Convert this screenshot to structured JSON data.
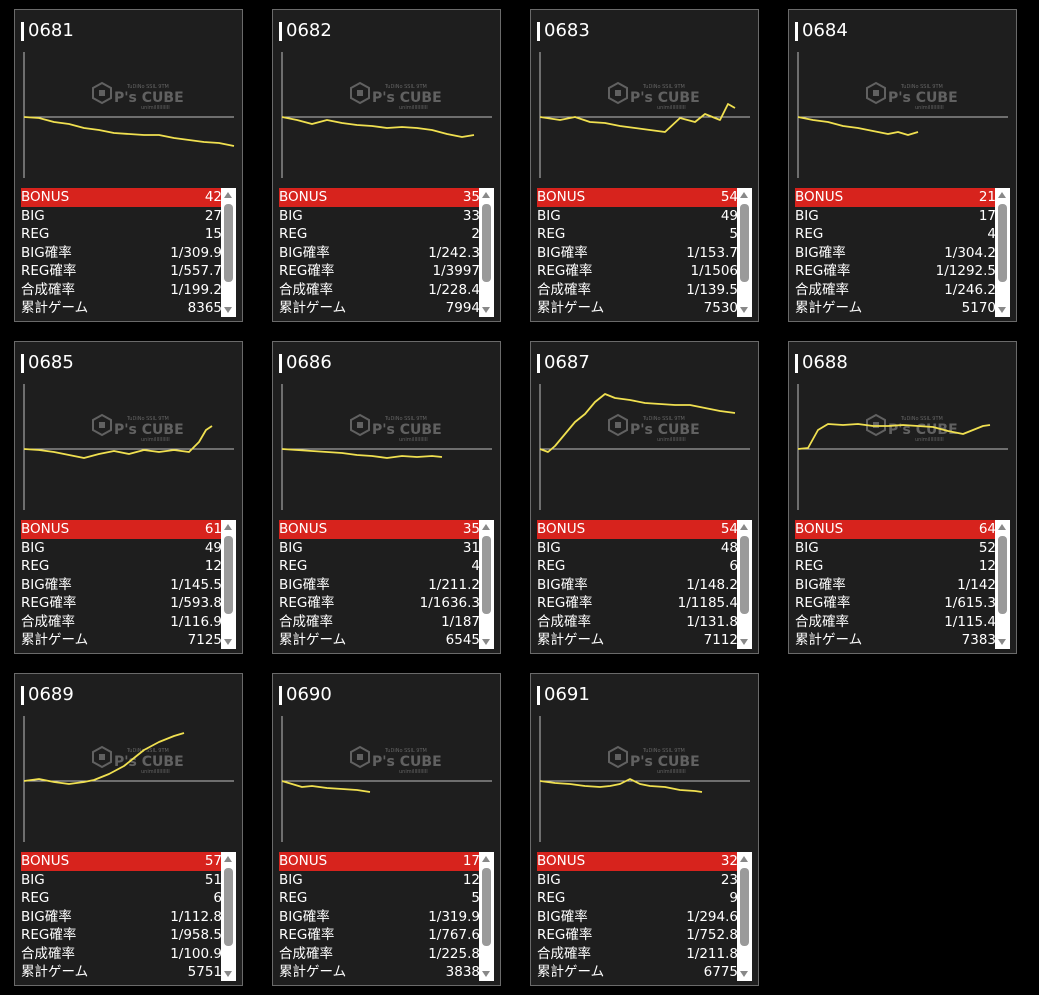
{
  "labels": {
    "bonus": "BONUS",
    "big": "BIG",
    "reg": "REG",
    "big_rate": "BIG確率",
    "reg_rate": "REG確率",
    "combined_rate": "合成確率",
    "total_games": "累計ゲーム"
  },
  "watermark": {
    "brand": "P's CUBE",
    "top": "TuDiNo SSIL 9TM",
    "bottom": "unimiIIIIIIIIII"
  },
  "colors": {
    "bonus_row": "#d7231d",
    "line": "#f0e050",
    "baseline": "#bfbfbf"
  },
  "machines": [
    {
      "id": "0681",
      "bonus": "42",
      "big": "27",
      "reg": "15",
      "big_rate": "1/309.9",
      "reg_rate": "1/557.7",
      "combined_rate": "1/199.2",
      "total_games": "8365"
    },
    {
      "id": "0682",
      "bonus": "35",
      "big": "33",
      "reg": "2",
      "big_rate": "1/242.3",
      "reg_rate": "1/3997",
      "combined_rate": "1/228.4",
      "total_games": "7994"
    },
    {
      "id": "0683",
      "bonus": "54",
      "big": "49",
      "reg": "5",
      "big_rate": "1/153.7",
      "reg_rate": "1/1506",
      "combined_rate": "1/139.5",
      "total_games": "7530"
    },
    {
      "id": "0684",
      "bonus": "21",
      "big": "17",
      "reg": "4",
      "big_rate": "1/304.2",
      "reg_rate": "1/1292.5",
      "combined_rate": "1/246.2",
      "total_games": "5170"
    },
    {
      "id": "0685",
      "bonus": "61",
      "big": "49",
      "reg": "12",
      "big_rate": "1/145.5",
      "reg_rate": "1/593.8",
      "combined_rate": "1/116.9",
      "total_games": "7125"
    },
    {
      "id": "0686",
      "bonus": "35",
      "big": "31",
      "reg": "4",
      "big_rate": "1/211.2",
      "reg_rate": "1/1636.3",
      "combined_rate": "1/187",
      "total_games": "6545"
    },
    {
      "id": "0687",
      "bonus": "54",
      "big": "48",
      "reg": "6",
      "big_rate": "1/148.2",
      "reg_rate": "1/1185.4",
      "combined_rate": "1/131.8",
      "total_games": "7112"
    },
    {
      "id": "0688",
      "bonus": "64",
      "big": "52",
      "reg": "12",
      "big_rate": "1/142",
      "reg_rate": "1/615.3",
      "combined_rate": "1/115.4",
      "total_games": "7383"
    },
    {
      "id": "0689",
      "bonus": "57",
      "big": "51",
      "reg": "6",
      "big_rate": "1/112.8",
      "reg_rate": "1/958.5",
      "combined_rate": "1/100.9",
      "total_games": "5751"
    },
    {
      "id": "0690",
      "bonus": "17",
      "big": "12",
      "reg": "5",
      "big_rate": "1/319.9",
      "reg_rate": "1/767.6",
      "combined_rate": "1/225.8",
      "total_games": "3838"
    },
    {
      "id": "0691",
      "bonus": "32",
      "big": "23",
      "reg": "9",
      "big_rate": "1/294.6",
      "reg_rate": "1/752.8",
      "combined_rate": "1/211.8",
      "total_games": "6775"
    }
  ]
}
